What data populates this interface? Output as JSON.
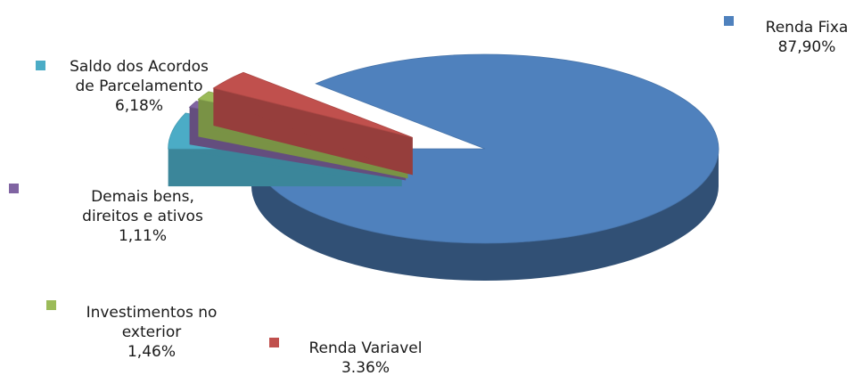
{
  "chart_data": {
    "type": "pie",
    "style": "3d-exploded",
    "slices": [
      {
        "label_lines": [
          "Renda Fixa"
        ],
        "value_text": "87,90%",
        "value": 87.9,
        "color": "#4F81BD"
      },
      {
        "label_lines": [
          "Renda Variavel"
        ],
        "value_text": "3.36%",
        "value": 3.36,
        "color": "#C0504D"
      },
      {
        "label_lines": [
          "Investimentos no",
          "exterior"
        ],
        "value_text": "1,46%",
        "value": 1.46,
        "color": "#9BBB59"
      },
      {
        "label_lines": [
          "Demais bens,",
          "direitos e ativos"
        ],
        "value_text": "1,11%",
        "value": 1.11,
        "color": "#8064A2"
      },
      {
        "label_lines": [
          "Saldo dos Acordos",
          "de Parcelamento"
        ],
        "value_text": "6,18%",
        "value": 6.18,
        "color": "#4BACC6"
      }
    ],
    "legend": "labels-beside-markers"
  }
}
